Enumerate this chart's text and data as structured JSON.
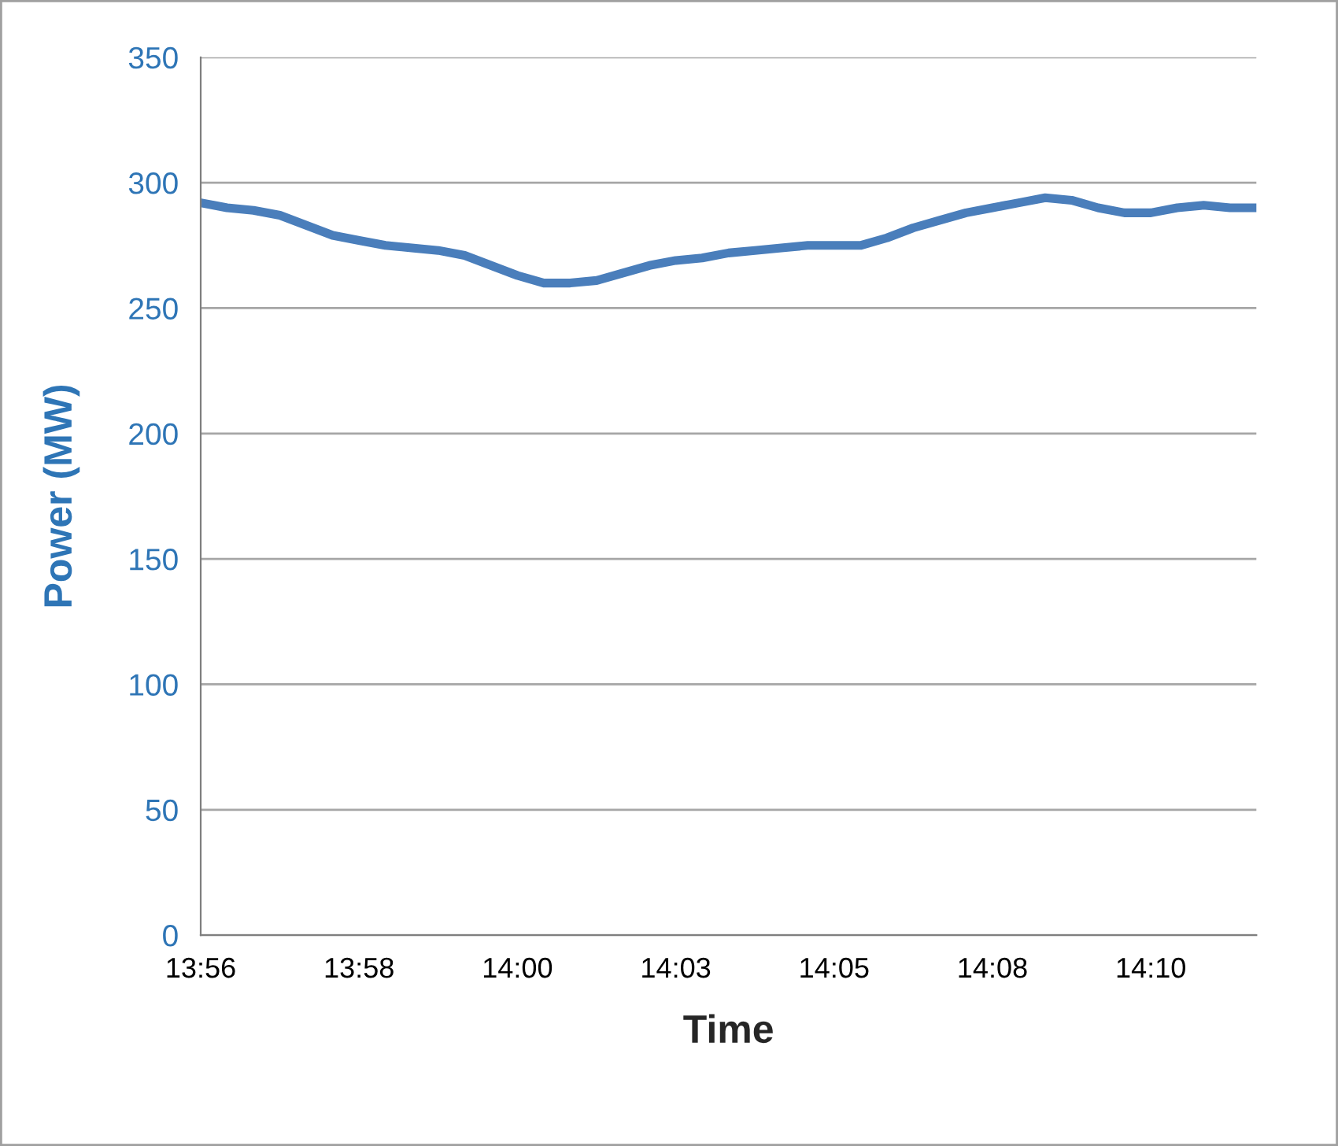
{
  "chart_data": {
    "type": "line",
    "xlabel": "Time",
    "ylabel": "Power (MW)",
    "categories": [
      "13:56",
      null,
      null,
      null,
      null,
      null,
      "13:58",
      null,
      null,
      null,
      null,
      null,
      "14:00",
      null,
      null,
      null,
      null,
      null,
      "14:03",
      null,
      null,
      null,
      null,
      null,
      "14:05",
      null,
      null,
      null,
      null,
      null,
      "14:08",
      null,
      null,
      null,
      null,
      null,
      "14:10",
      null,
      null,
      null,
      null
    ],
    "series": [
      {
        "color": "#4a7ebb",
        "values": [
          292,
          290,
          289,
          287,
          283,
          279,
          277,
          275,
          274,
          273,
          271,
          267,
          263,
          260,
          260,
          261,
          264,
          267,
          269,
          270,
          272,
          273,
          274,
          275,
          275,
          275,
          278,
          282,
          285,
          288,
          290,
          292,
          294,
          293,
          290,
          288,
          288,
          290,
          291,
          290,
          290
        ]
      }
    ],
    "ylim": [
      0,
      350
    ],
    "yticks": [
      0,
      50,
      100,
      150,
      200,
      250,
      300,
      350
    ],
    "grid": "y",
    "legend": false,
    "marker": "none",
    "line_style": "solid"
  }
}
